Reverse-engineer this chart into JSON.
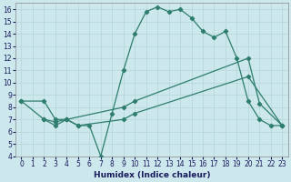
{
  "line1_x": [
    0,
    2,
    3,
    4,
    5,
    6,
    7,
    8,
    9,
    10,
    11,
    12,
    13,
    14,
    15,
    16,
    17,
    18,
    19,
    20,
    21,
    22,
    23
  ],
  "line1_y": [
    8.5,
    8.5,
    7.0,
    7.0,
    6.5,
    6.5,
    4.0,
    7.5,
    11.0,
    14.0,
    15.8,
    16.2,
    15.8,
    16.0,
    15.3,
    14.2,
    13.7,
    14.2,
    12.0,
    8.5,
    7.0,
    6.5,
    6.5
  ],
  "line2_x": [
    0,
    2,
    3,
    4,
    9,
    10,
    20,
    21,
    23
  ],
  "line2_y": [
    8.5,
    7.0,
    6.5,
    7.0,
    8.0,
    8.5,
    12.0,
    8.3,
    6.5
  ],
  "line3_x": [
    2,
    3,
    4,
    5,
    9,
    10,
    20,
    23
  ],
  "line3_y": [
    7.0,
    6.8,
    7.0,
    6.5,
    7.0,
    7.5,
    10.5,
    6.5
  ],
  "line_color": "#2e7d6e",
  "bg_color": "#cce8ec",
  "grid_color": "#b8d8dc",
  "xlabel": "Humidex (Indice chaleur)",
  "xlim": [
    -0.5,
    23.5
  ],
  "ylim": [
    4,
    16.5
  ],
  "yticks": [
    4,
    5,
    6,
    7,
    8,
    9,
    10,
    11,
    12,
    13,
    14,
    15,
    16
  ],
  "xticks": [
    0,
    1,
    2,
    3,
    4,
    5,
    6,
    7,
    8,
    9,
    10,
    11,
    12,
    13,
    14,
    15,
    16,
    17,
    18,
    19,
    20,
    21,
    22,
    23
  ]
}
